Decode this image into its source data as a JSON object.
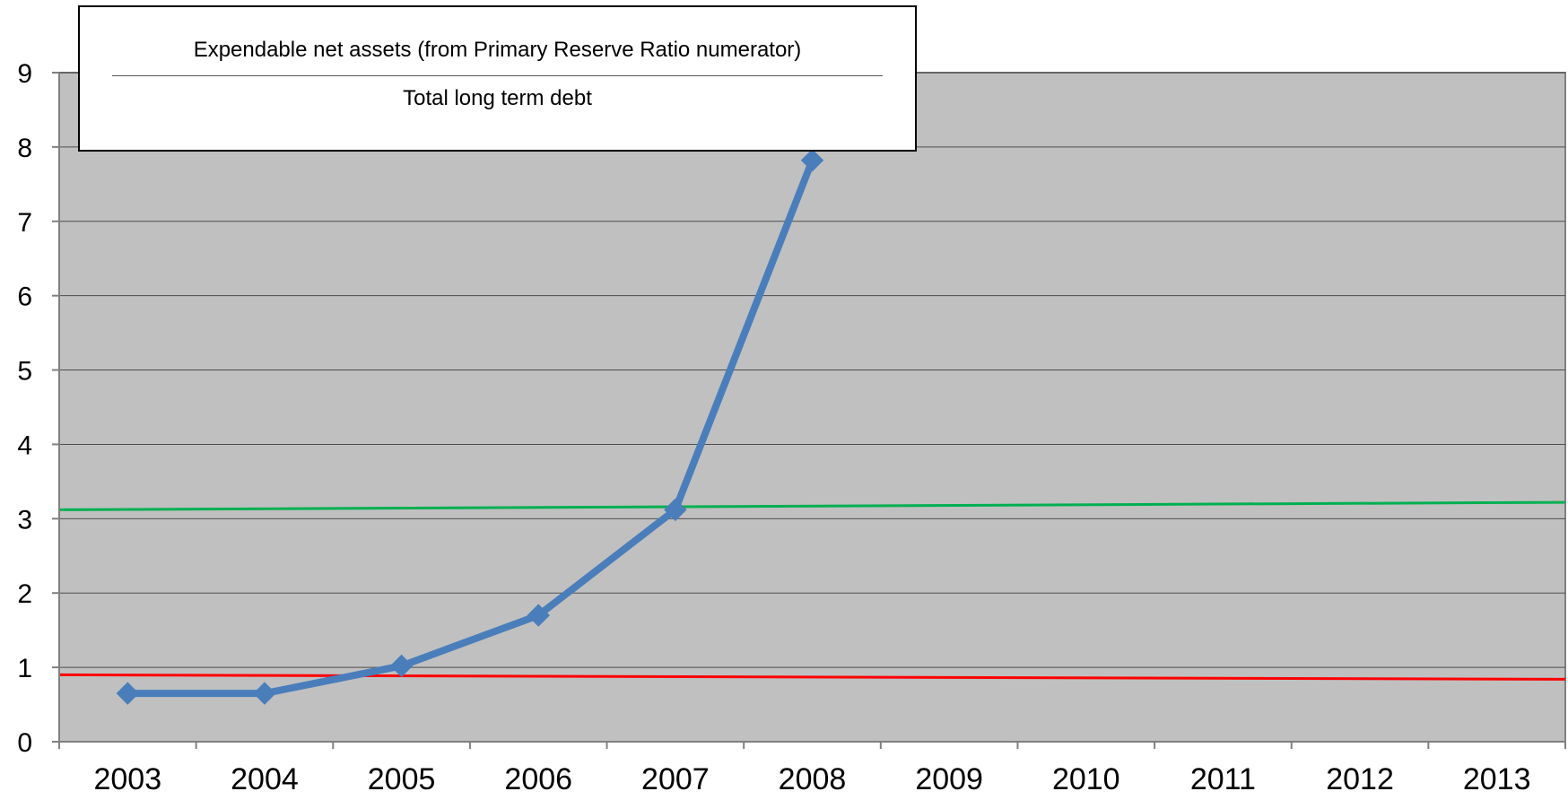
{
  "chart_data": {
    "type": "line",
    "title": "",
    "xlabel": "",
    "ylabel": "",
    "categories": [
      "2003",
      "2004",
      "2005",
      "2006",
      "2007",
      "2008",
      "2009",
      "2010",
      "2011",
      "2012",
      "2013"
    ],
    "y_ticks": [
      "0",
      "1",
      "2",
      "3",
      "4",
      "5",
      "6",
      "7",
      "8",
      "9"
    ],
    "ylim": [
      0,
      9
    ],
    "grid": true,
    "background_color": "#c0c0c0",
    "series": [
      {
        "values": [
          0.65,
          0.65,
          1.02,
          1.7,
          3.12,
          7.82,
          null,
          null,
          null,
          null,
          null
        ],
        "color": "#4a7ebb",
        "marker": "diamond"
      }
    ],
    "reference_lines": [
      {
        "color": "#00b050",
        "y_start": 3.12,
        "y_end": 3.22
      },
      {
        "color": "#ff0000",
        "y_start": 0.9,
        "y_end": 0.84
      }
    ],
    "legend": {
      "placement": "top-left",
      "numerator": "Expendable net assets (from Primary Reserve Ratio numerator)",
      "denominator": "Total long term debt"
    }
  }
}
